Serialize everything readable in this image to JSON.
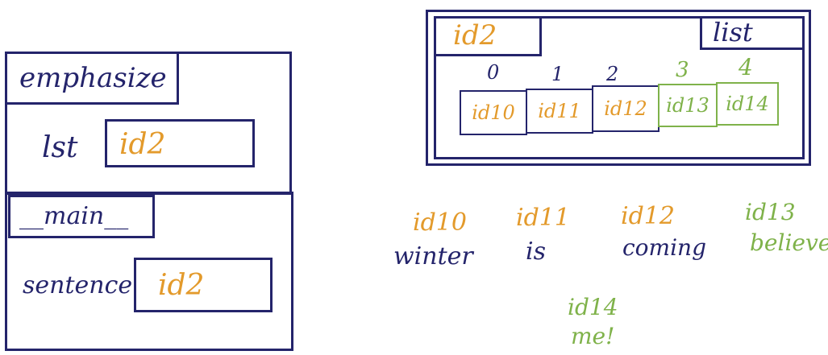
{
  "colors": {
    "ink": "#24246b",
    "orange": "#e39a2b",
    "green": "#7fb24a"
  },
  "frames": {
    "emphasize": {
      "name": "emphasize",
      "var_name": "lst",
      "var_value": "id2"
    },
    "main": {
      "name": "__main__",
      "var_name": "sentence",
      "var_value": "id2"
    }
  },
  "list_object": {
    "id": "id2",
    "type": "list",
    "indices": [
      "0",
      "1",
      "2",
      "3",
      "4"
    ],
    "cells": [
      "id10",
      "id11",
      "id12",
      "id13",
      "id14"
    ]
  },
  "values": [
    {
      "id": "id10",
      "value": "winter",
      "color": "orange"
    },
    {
      "id": "id11",
      "value": "is",
      "color": "orange"
    },
    {
      "id": "id12",
      "value": "coming",
      "color": "orange"
    },
    {
      "id": "id13",
      "value": "believe",
      "color": "green"
    },
    {
      "id": "id14",
      "value": "me!",
      "color": "green"
    }
  ]
}
